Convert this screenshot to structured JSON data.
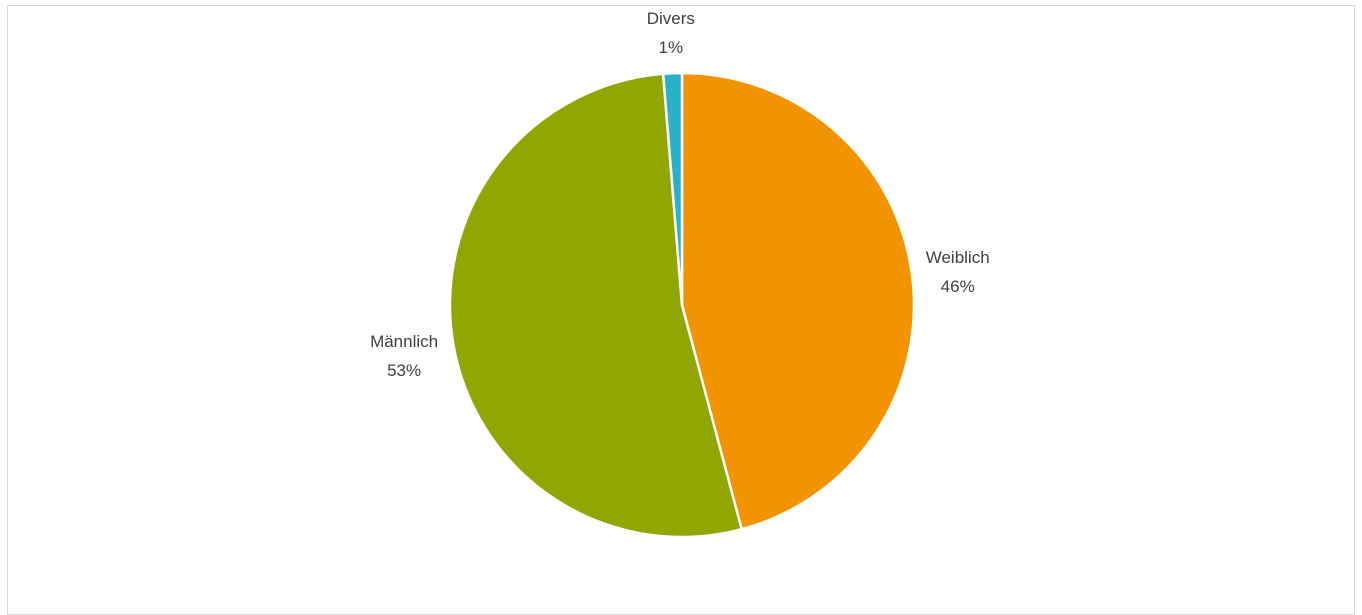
{
  "chart_data": {
    "type": "pie",
    "title": "",
    "start_angle_deg": 0,
    "direction": "clockwise",
    "slices": [
      {
        "label": "Weiblich",
        "value": 46,
        "value_label": "46%",
        "color": "#f29400"
      },
      {
        "label": "Männlich",
        "value": 53,
        "value_label": "53%",
        "color": "#91a600"
      },
      {
        "label": "Divers",
        "value": 1.3,
        "value_label": "1%",
        "color": "#2ab0c8"
      }
    ],
    "slice_border_color": "#ffffff",
    "legend": "none",
    "data_labels": "outside-end"
  }
}
